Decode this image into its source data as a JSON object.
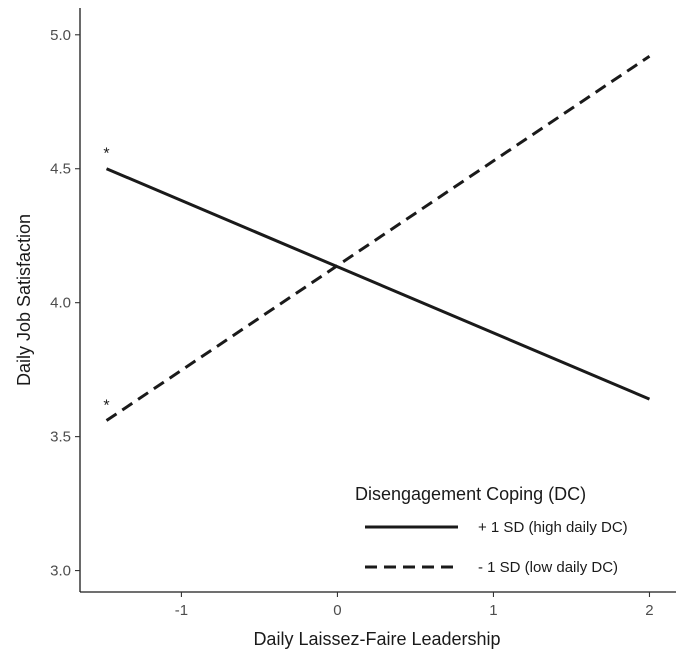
{
  "chart_data": {
    "type": "line",
    "title": "",
    "xlabel": "Daily Laissez-Faire Leadership",
    "ylabel": "Daily Job Satisfaction",
    "xlim": [
      -1.65,
      2.17
    ],
    "ylim": [
      2.92,
      5.1
    ],
    "x_ticks": [
      -1,
      0,
      1,
      2
    ],
    "x_tick_labels": [
      "-1",
      "0",
      "1",
      "2"
    ],
    "y_ticks": [
      3.0,
      3.5,
      4.0,
      4.5,
      5.0
    ],
    "y_tick_labels": [
      "3.0",
      "3.5",
      "4.0",
      "4.5",
      "5.0"
    ],
    "grid": false,
    "legend": {
      "title": "Disengagement Coping (DC)",
      "placement": "bottom-right"
    },
    "series": [
      {
        "name": "+ 1 SD (high daily DC)",
        "line_style": "solid",
        "color": "#1a1a1a",
        "x": [
          -1.48,
          2.0
        ],
        "y": [
          4.5,
          3.64
        ]
      },
      {
        "name": "- 1 SD (low daily DC)",
        "line_style": "dashed",
        "color": "#1a1a1a",
        "x": [
          -1.48,
          2.0
        ],
        "y": [
          3.56,
          4.92
        ]
      }
    ],
    "annotations": [
      {
        "text": "*",
        "x": -1.48,
        "y": 4.5
      },
      {
        "text": "*",
        "x": -1.48,
        "y": 3.56
      }
    ]
  }
}
